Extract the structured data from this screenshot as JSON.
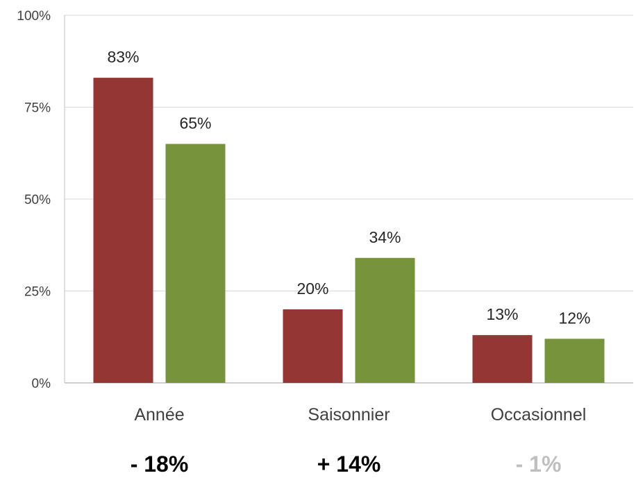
{
  "chart_data": {
    "type": "bar",
    "categories": [
      "Année",
      "Saisonnier",
      "Occasionnel"
    ],
    "series": [
      {
        "values": [
          83,
          20,
          13
        ],
        "labels": [
          "83%",
          "20%",
          "13%"
        ],
        "color": "#943634"
      },
      {
        "values": [
          65,
          34,
          12
        ],
        "labels": [
          "65%",
          "34%",
          "12%"
        ],
        "color": "#77933C"
      }
    ],
    "ylim": [
      0,
      100
    ],
    "yticks": [
      0,
      25,
      50,
      75,
      100
    ],
    "ytick_labels": [
      "0%",
      "25%",
      "50%",
      "75%",
      "100%"
    ],
    "grid": true,
    "legend": "none",
    "annotations": [
      {
        "text": "- 18%",
        "color": "#000000"
      },
      {
        "text": "+ 14%",
        "color": "#000000"
      },
      {
        "text": "- 1%",
        "color": "#BFBFBF"
      }
    ],
    "gridline_color": "#D9D9D9",
    "axis_color": "#BFBFBF"
  }
}
